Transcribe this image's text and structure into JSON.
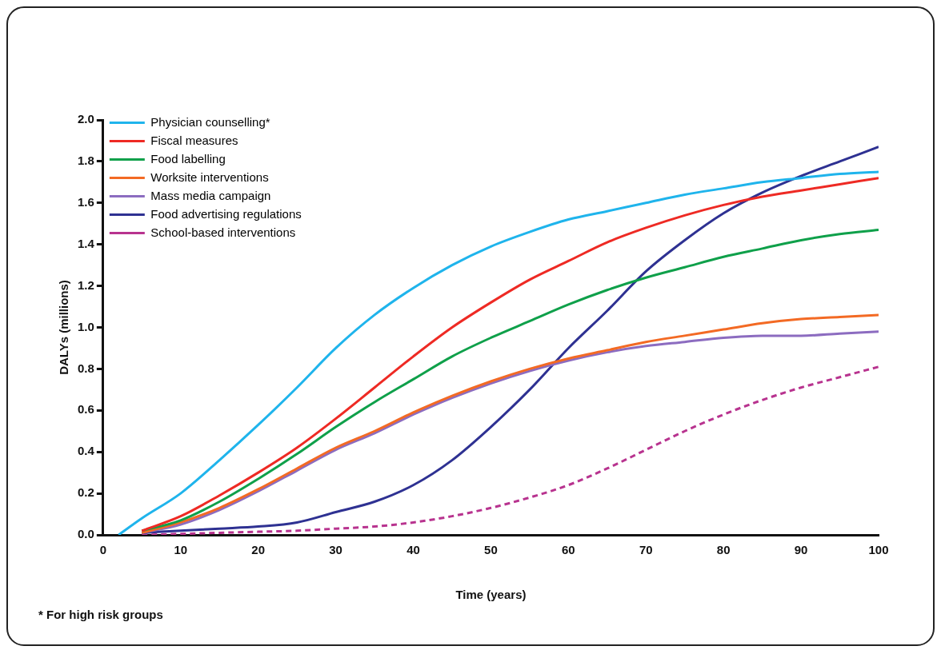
{
  "chart_data": {
    "type": "line",
    "xlabel": "Time (years)",
    "ylabel": "DALYs (millions)",
    "legend": "top left",
    "grid": false,
    "x": [
      5,
      10,
      15,
      20,
      25,
      30,
      35,
      40,
      45,
      50,
      55,
      60,
      65,
      70,
      75,
      80,
      85,
      90,
      95,
      100
    ],
    "series": [
      {
        "name": "Physician counselling*",
        "color": "#1fb4ec",
        "x": [
          2,
          5,
          10,
          15,
          20,
          25,
          30,
          35,
          40,
          45,
          50,
          55,
          60,
          65,
          70,
          75,
          80,
          85,
          90,
          95,
          100
        ],
        "values": [
          0,
          0.08,
          0.2,
          0.36,
          0.53,
          0.71,
          0.9,
          1.06,
          1.19,
          1.3,
          1.39,
          1.46,
          1.52,
          1.56,
          1.6,
          1.64,
          1.67,
          1.7,
          1.72,
          1.74,
          1.75
        ]
      },
      {
        "name": "Fiscal measures",
        "color": "#ee2a24",
        "values": [
          0.02,
          0.09,
          0.19,
          0.3,
          0.42,
          0.56,
          0.71,
          0.86,
          1.0,
          1.12,
          1.23,
          1.32,
          1.41,
          1.48,
          1.54,
          1.59,
          1.63,
          1.66,
          1.69,
          1.72
        ]
      },
      {
        "name": "Food labelling",
        "color": "#0fa04a",
        "values": [
          0.02,
          0.07,
          0.16,
          0.27,
          0.39,
          0.52,
          0.64,
          0.75,
          0.86,
          0.95,
          1.03,
          1.11,
          1.18,
          1.24,
          1.29,
          1.34,
          1.38,
          1.42,
          1.45,
          1.47
        ]
      },
      {
        "name": "Worksite interventions",
        "color": "#f36a24",
        "values": [
          0.01,
          0.06,
          0.13,
          0.22,
          0.32,
          0.42,
          0.5,
          0.59,
          0.67,
          0.74,
          0.8,
          0.85,
          0.89,
          0.93,
          0.96,
          0.99,
          1.02,
          1.04,
          1.05,
          1.06
        ]
      },
      {
        "name": "Mass media campaign",
        "color": "#8c6cc0",
        "values": [
          0.01,
          0.05,
          0.12,
          0.21,
          0.31,
          0.41,
          0.49,
          0.58,
          0.66,
          0.73,
          0.79,
          0.84,
          0.88,
          0.91,
          0.93,
          0.95,
          0.96,
          0.96,
          0.97,
          0.98
        ]
      },
      {
        "name": "Food advertising regulations",
        "color": "#2e3192",
        "values": [
          0.01,
          0.02,
          0.03,
          0.04,
          0.06,
          0.11,
          0.16,
          0.24,
          0.36,
          0.52,
          0.7,
          0.9,
          1.08,
          1.27,
          1.42,
          1.55,
          1.65,
          1.73,
          1.8,
          1.87
        ]
      },
      {
        "name": "School-based interventions",
        "color": "#b8338f",
        "line_style": "dashed",
        "values": [
          0,
          0.005,
          0.01,
          0.015,
          0.02,
          0.03,
          0.04,
          0.06,
          0.09,
          0.13,
          0.18,
          0.24,
          0.32,
          0.41,
          0.5,
          0.58,
          0.65,
          0.71,
          0.76,
          0.81
        ]
      }
    ],
    "xlim": [
      0,
      100
    ],
    "xticks": [
      0,
      10,
      20,
      30,
      40,
      50,
      60,
      70,
      80,
      90,
      100
    ],
    "ylim": [
      0,
      2
    ],
    "yticks": [
      {
        "value": 0,
        "label": "0.0"
      },
      {
        "value": 0.2,
        "label": "0.2"
      },
      {
        "value": 0.4,
        "label": "0.4"
      },
      {
        "value": 0.6,
        "label": "0.6"
      },
      {
        "value": 0.8,
        "label": "0.8"
      },
      {
        "value": 1,
        "label": "1.0"
      },
      {
        "value": 1.2,
        "label": "1.2"
      },
      {
        "value": 1.4,
        "label": "1.4"
      },
      {
        "value": 1.6,
        "label": "1.6"
      },
      {
        "value": 1.8,
        "label": "1.8"
      },
      {
        "value": 2,
        "label": "2.0"
      }
    ],
    "annotations": [
      "* For high risk groups"
    ]
  }
}
